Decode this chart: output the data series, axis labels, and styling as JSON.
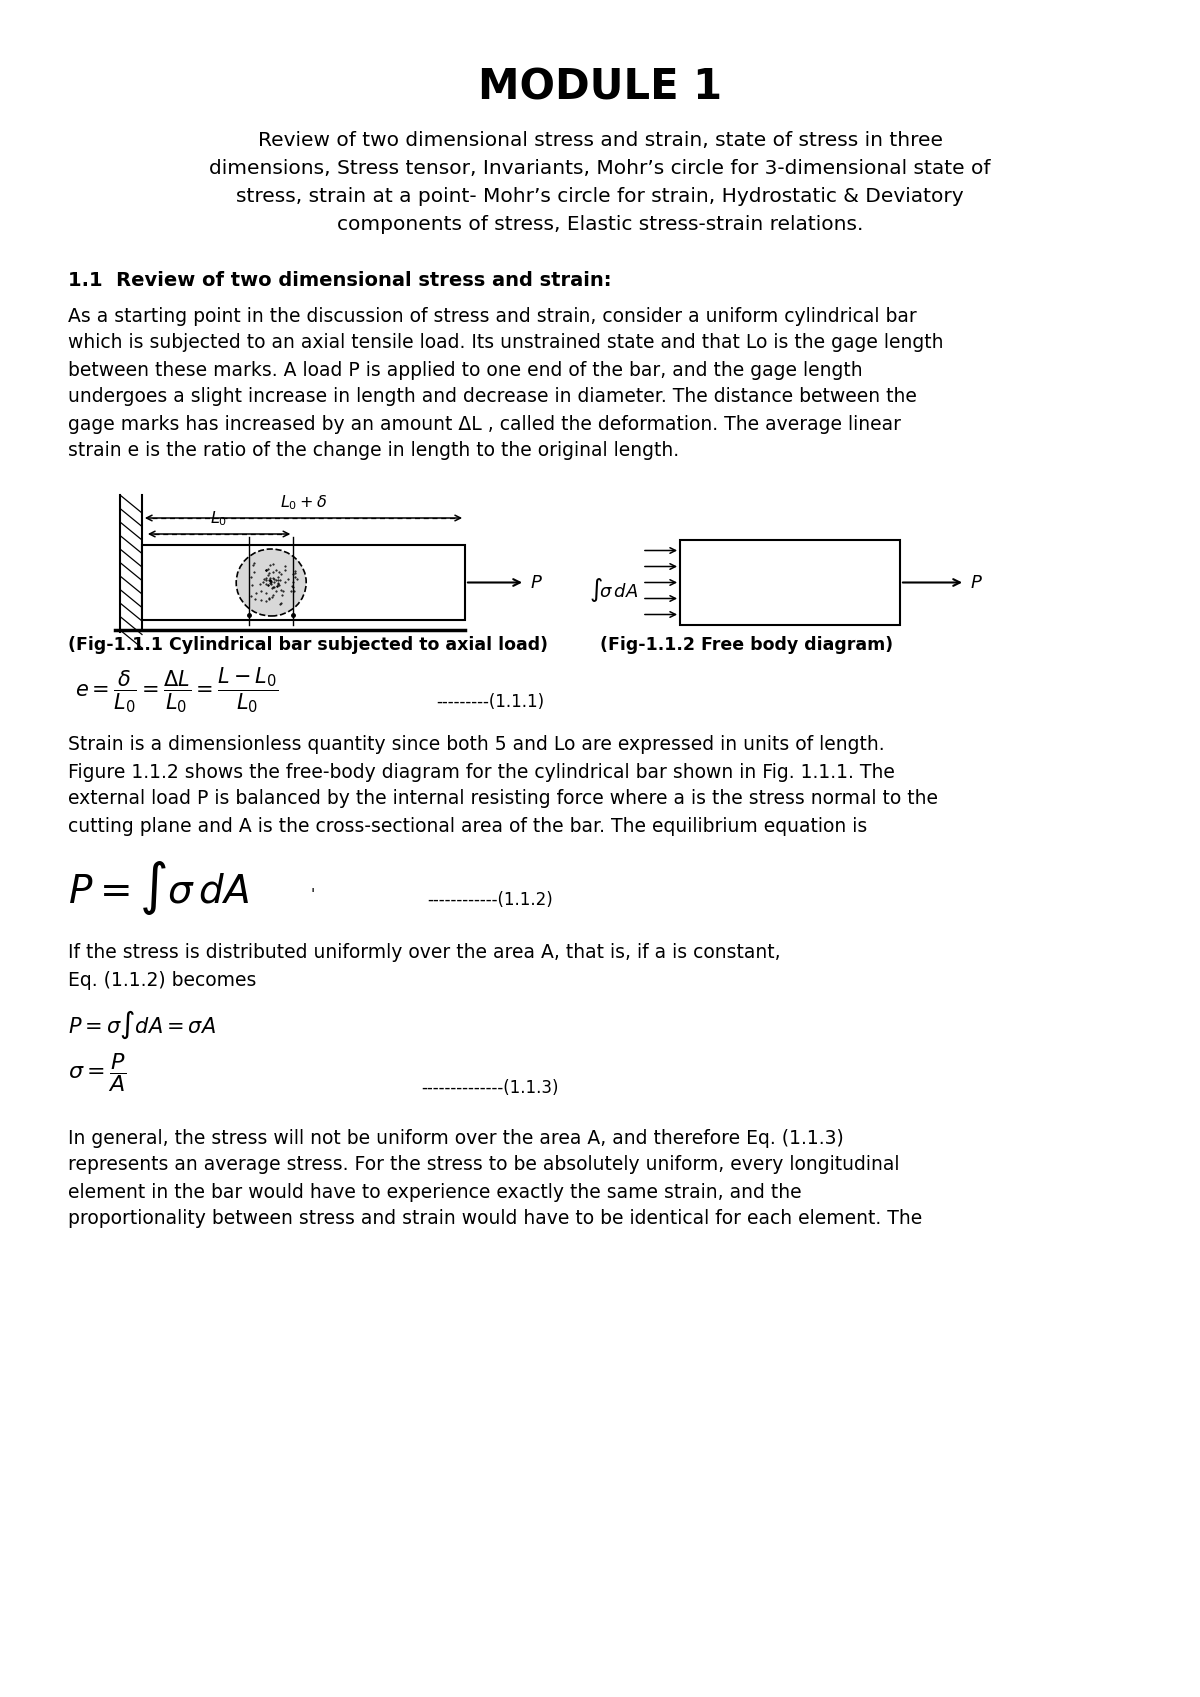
{
  "bg_color": "#ffffff",
  "title": "MODULE 1",
  "subtitle_lines": [
    "Review of two dimensional stress and strain, state of stress in three",
    "dimensions, Stress tensor, Invariants, Mohr’s circle for 3-dimensional state of",
    "stress, strain at a point- Mohr’s circle for strain, Hydrostatic & Deviatory",
    "components of stress, Elastic stress-strain relations."
  ],
  "section_title": "1.1  Review of two dimensional stress and strain:",
  "para1_lines": [
    "As a starting point in the discussion of stress and strain, consider a uniform cylindrical bar",
    "which is subjected to an axial tensile load. Its unstrained state and that Lo is the gage length",
    "between these marks. A load P is applied to one end of the bar, and the gage length",
    "undergoes a slight increase in length and decrease in diameter. The distance between the",
    "gage marks has increased by an amount ΔL , called the deformation. The average linear",
    "strain e is the ratio of the change in length to the original length."
  ],
  "fig_caption1": "(Fig-1.1.1 Cylindrical bar subjected to axial load)",
  "fig_caption2": "(Fig-1.1.2 Free body diagram)",
  "eq111_label": "---------(1.1.1)",
  "para2_lines": [
    "Strain is a dimensionless quantity since both 5 and Lo are expressed in units of length.",
    "Figure 1.1.2 shows the free-body diagram for the cylindrical bar shown in Fig. 1.1.1. The",
    "external load P is balanced by the internal resisting force where a is the stress normal to the",
    "cutting plane and A is the cross-sectional area of the bar. The equilibrium equation is"
  ],
  "eq112_label": "------------(1.1.2)",
  "para3_lines": [
    "If the stress is distributed uniformly over the area A, that is, if a is constant,",
    "Eq. (1.1.2) becomes"
  ],
  "eq113_label": "--------------(1.1.3)",
  "para4_lines": [
    "In general, the stress will not be uniform over the area A, and therefore Eq. (1.1.3)",
    "represents an average stress. For the stress to be absolutely uniform, every longitudinal",
    "element in the bar would have to experience exactly the same strain, and the",
    "proportionality between stress and strain would have to be identical for each element. The"
  ]
}
